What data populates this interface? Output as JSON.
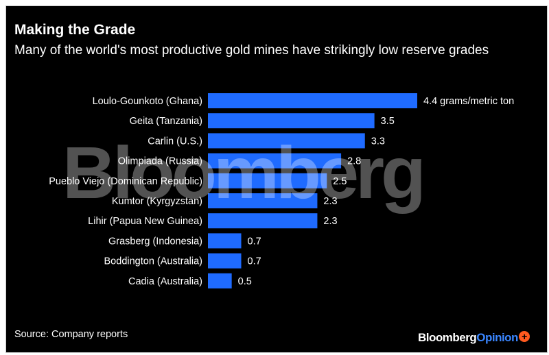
{
  "title": "Making the Grade",
  "subtitle": "Many of the world's most productive gold mines have strikingly low reserve grades",
  "source": "Source: Company reports",
  "watermark": "Bloomberg",
  "brand": {
    "name": "Bloomberg",
    "product": "Opinion",
    "plus": "+"
  },
  "colors": {
    "bar": "#1f6bff",
    "background": "#000000",
    "text": "#ffffff",
    "accent": "#3a86ff",
    "badge": "#ff5a1f"
  },
  "chart_data": {
    "type": "bar",
    "orientation": "horizontal",
    "title": "Making the Grade",
    "subtitle": "Many of the world's most productive gold mines have strikingly low reserve grades",
    "categories": [
      "Loulo-Gounkoto (Ghana)",
      "Geita (Tanzania)",
      "Carlin (U.S.)",
      "Olimpiada (Russia)",
      "Pueblo Viejo (Dominican Republic)",
      "Kumtor (Kyrgyzstan)",
      "Lihir (Papua New Guinea)",
      "Grasberg (Indonesia)",
      "Boddington (Australia)",
      "Cadia (Australia)"
    ],
    "values": [
      4.4,
      3.5,
      3.3,
      2.8,
      2.5,
      2.3,
      2.3,
      0.7,
      0.7,
      0.5
    ],
    "value_labels": [
      "4.4 grams/metric ton",
      "3.5",
      "3.3",
      "2.8",
      "2.5",
      "2.3",
      "2.3",
      "0.7",
      "0.7",
      "0.5"
    ],
    "unit": "grams/metric ton",
    "xlim": [
      0,
      4.4
    ],
    "grid": false,
    "xlabel": "",
    "ylabel": ""
  }
}
